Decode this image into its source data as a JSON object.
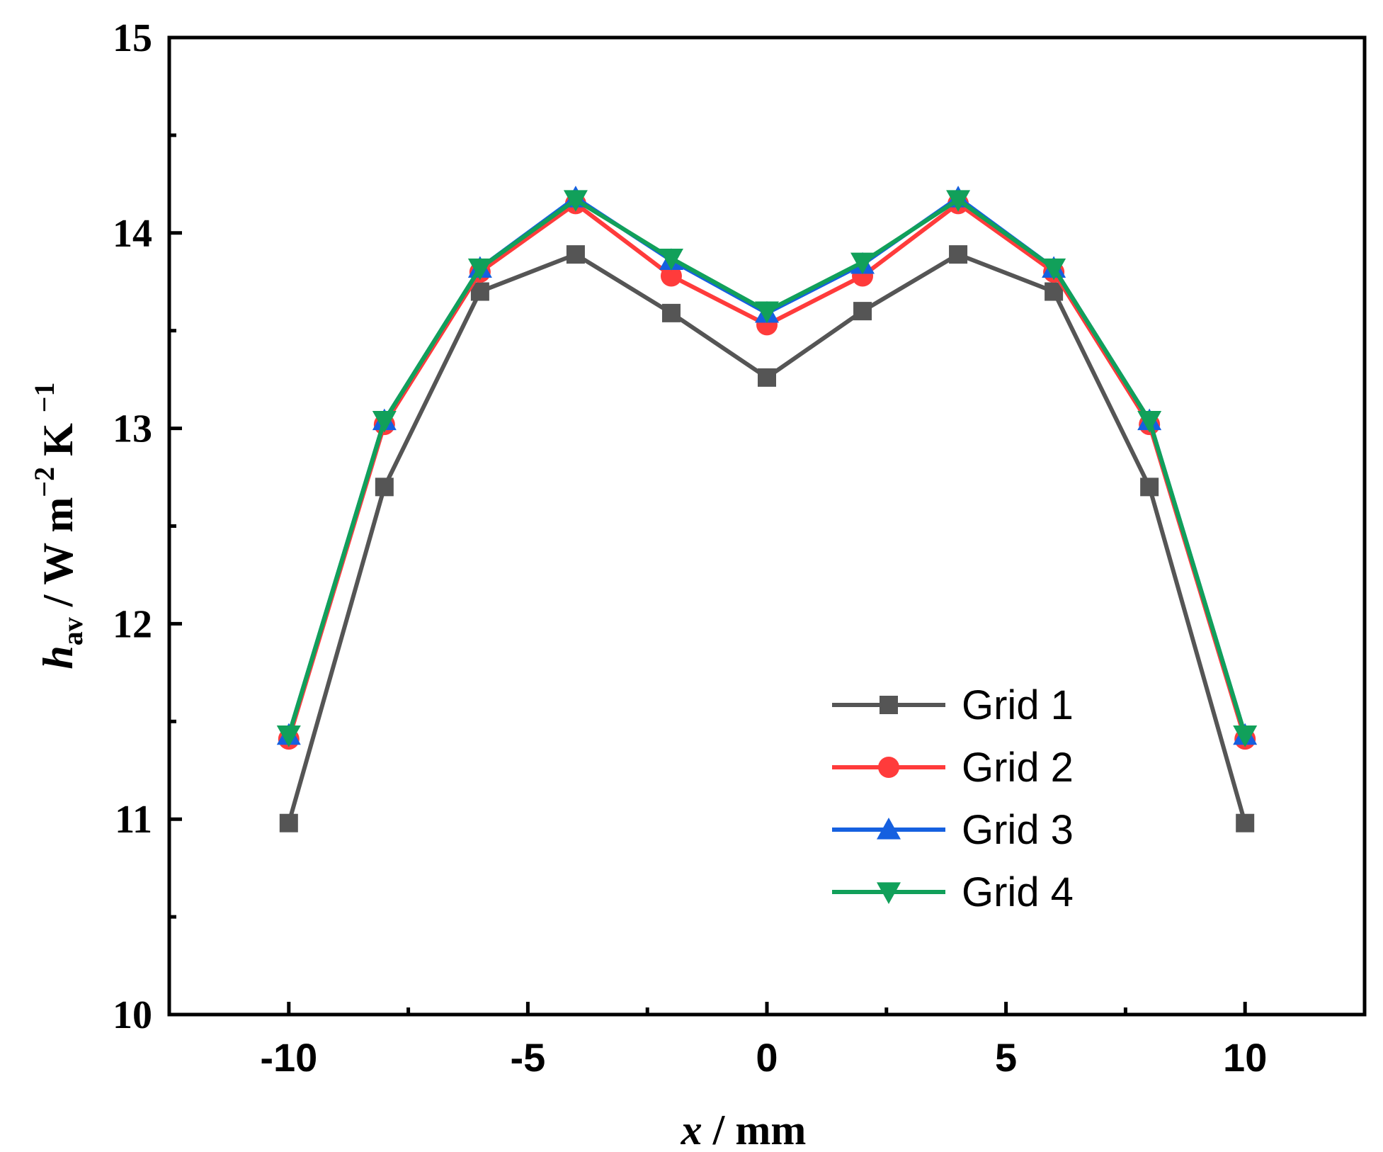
{
  "chart_data": {
    "type": "line",
    "title": "",
    "xlabel": {
      "var": "x",
      "unit": " / mm"
    },
    "ylabel": {
      "var": "h",
      "sub": "av",
      "unit_main": " / W m",
      "sup1": "−2",
      "unit_k": " K ",
      "sup2": "−1"
    },
    "xlim": [
      -12.5,
      12.5
    ],
    "ylim": [
      10,
      15
    ],
    "x_ticks": [
      -10,
      -5,
      0,
      5,
      10
    ],
    "x_tick_labels": [
      "-10",
      "-5",
      "0",
      "5",
      "10"
    ],
    "y_ticks": [
      10,
      11,
      12,
      13,
      14,
      15
    ],
    "y_tick_labels": [
      "10",
      "11",
      "12",
      "13",
      "14",
      "15"
    ],
    "x": [
      -10,
      -8,
      -6,
      -4,
      -2,
      0,
      2,
      4,
      6,
      8,
      10
    ],
    "series": [
      {
        "name": "Grid 1",
        "color": "#555555",
        "marker": "square",
        "values": [
          10.98,
          12.7,
          13.7,
          13.89,
          13.59,
          13.26,
          13.6,
          13.89,
          13.7,
          12.7,
          10.98
        ]
      },
      {
        "name": "Grid 2",
        "color": "#ff3b3b",
        "marker": "circle",
        "values": [
          11.41,
          13.02,
          13.8,
          14.15,
          13.78,
          13.53,
          13.78,
          14.15,
          13.8,
          13.02,
          11.41
        ]
      },
      {
        "name": "Grid 3",
        "color": "#1560e0",
        "marker": "triangle-up",
        "values": [
          11.43,
          13.04,
          13.82,
          14.18,
          13.86,
          13.59,
          13.84,
          14.18,
          13.82,
          13.04,
          11.43
        ]
      },
      {
        "name": "Grid 4",
        "color": "#11a05a",
        "marker": "triangle-down",
        "values": [
          11.43,
          13.04,
          13.82,
          14.17,
          13.87,
          13.6,
          13.85,
          14.17,
          13.82,
          13.04,
          11.43
        ]
      }
    ],
    "legend_position": "bottom-right",
    "grid": false
  }
}
